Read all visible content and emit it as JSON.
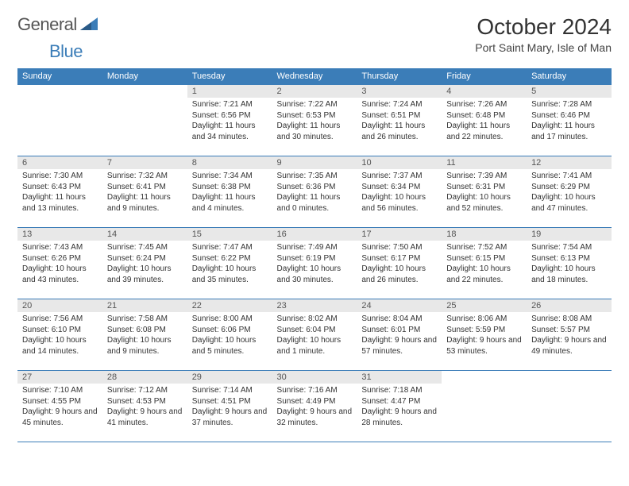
{
  "brand": {
    "part1": "General",
    "part2": "Blue"
  },
  "title": "October 2024",
  "location": "Port Saint Mary, Isle of Man",
  "colors": {
    "header_bg": "#3b7db8",
    "header_text": "#ffffff",
    "daynum_bg": "#e8e8e8",
    "daynum_text": "#555555",
    "body_text": "#333333",
    "rule": "#3b7db8",
    "page_bg": "#ffffff"
  },
  "weekdays": [
    "Sunday",
    "Monday",
    "Tuesday",
    "Wednesday",
    "Thursday",
    "Friday",
    "Saturday"
  ],
  "weeks": [
    [
      {
        "blank": true
      },
      {
        "blank": true
      },
      {
        "day": "1",
        "sunrise": "Sunrise: 7:21 AM",
        "sunset": "Sunset: 6:56 PM",
        "daylight": "Daylight: 11 hours and 34 minutes."
      },
      {
        "day": "2",
        "sunrise": "Sunrise: 7:22 AM",
        "sunset": "Sunset: 6:53 PM",
        "daylight": "Daylight: 11 hours and 30 minutes."
      },
      {
        "day": "3",
        "sunrise": "Sunrise: 7:24 AM",
        "sunset": "Sunset: 6:51 PM",
        "daylight": "Daylight: 11 hours and 26 minutes."
      },
      {
        "day": "4",
        "sunrise": "Sunrise: 7:26 AM",
        "sunset": "Sunset: 6:48 PM",
        "daylight": "Daylight: 11 hours and 22 minutes."
      },
      {
        "day": "5",
        "sunrise": "Sunrise: 7:28 AM",
        "sunset": "Sunset: 6:46 PM",
        "daylight": "Daylight: 11 hours and 17 minutes."
      }
    ],
    [
      {
        "day": "6",
        "sunrise": "Sunrise: 7:30 AM",
        "sunset": "Sunset: 6:43 PM",
        "daylight": "Daylight: 11 hours and 13 minutes."
      },
      {
        "day": "7",
        "sunrise": "Sunrise: 7:32 AM",
        "sunset": "Sunset: 6:41 PM",
        "daylight": "Daylight: 11 hours and 9 minutes."
      },
      {
        "day": "8",
        "sunrise": "Sunrise: 7:34 AM",
        "sunset": "Sunset: 6:38 PM",
        "daylight": "Daylight: 11 hours and 4 minutes."
      },
      {
        "day": "9",
        "sunrise": "Sunrise: 7:35 AM",
        "sunset": "Sunset: 6:36 PM",
        "daylight": "Daylight: 11 hours and 0 minutes."
      },
      {
        "day": "10",
        "sunrise": "Sunrise: 7:37 AM",
        "sunset": "Sunset: 6:34 PM",
        "daylight": "Daylight: 10 hours and 56 minutes."
      },
      {
        "day": "11",
        "sunrise": "Sunrise: 7:39 AM",
        "sunset": "Sunset: 6:31 PM",
        "daylight": "Daylight: 10 hours and 52 minutes."
      },
      {
        "day": "12",
        "sunrise": "Sunrise: 7:41 AM",
        "sunset": "Sunset: 6:29 PM",
        "daylight": "Daylight: 10 hours and 47 minutes."
      }
    ],
    [
      {
        "day": "13",
        "sunrise": "Sunrise: 7:43 AM",
        "sunset": "Sunset: 6:26 PM",
        "daylight": "Daylight: 10 hours and 43 minutes."
      },
      {
        "day": "14",
        "sunrise": "Sunrise: 7:45 AM",
        "sunset": "Sunset: 6:24 PM",
        "daylight": "Daylight: 10 hours and 39 minutes."
      },
      {
        "day": "15",
        "sunrise": "Sunrise: 7:47 AM",
        "sunset": "Sunset: 6:22 PM",
        "daylight": "Daylight: 10 hours and 35 minutes."
      },
      {
        "day": "16",
        "sunrise": "Sunrise: 7:49 AM",
        "sunset": "Sunset: 6:19 PM",
        "daylight": "Daylight: 10 hours and 30 minutes."
      },
      {
        "day": "17",
        "sunrise": "Sunrise: 7:50 AM",
        "sunset": "Sunset: 6:17 PM",
        "daylight": "Daylight: 10 hours and 26 minutes."
      },
      {
        "day": "18",
        "sunrise": "Sunrise: 7:52 AM",
        "sunset": "Sunset: 6:15 PM",
        "daylight": "Daylight: 10 hours and 22 minutes."
      },
      {
        "day": "19",
        "sunrise": "Sunrise: 7:54 AM",
        "sunset": "Sunset: 6:13 PM",
        "daylight": "Daylight: 10 hours and 18 minutes."
      }
    ],
    [
      {
        "day": "20",
        "sunrise": "Sunrise: 7:56 AM",
        "sunset": "Sunset: 6:10 PM",
        "daylight": "Daylight: 10 hours and 14 minutes."
      },
      {
        "day": "21",
        "sunrise": "Sunrise: 7:58 AM",
        "sunset": "Sunset: 6:08 PM",
        "daylight": "Daylight: 10 hours and 9 minutes."
      },
      {
        "day": "22",
        "sunrise": "Sunrise: 8:00 AM",
        "sunset": "Sunset: 6:06 PM",
        "daylight": "Daylight: 10 hours and 5 minutes."
      },
      {
        "day": "23",
        "sunrise": "Sunrise: 8:02 AM",
        "sunset": "Sunset: 6:04 PM",
        "daylight": "Daylight: 10 hours and 1 minute."
      },
      {
        "day": "24",
        "sunrise": "Sunrise: 8:04 AM",
        "sunset": "Sunset: 6:01 PM",
        "daylight": "Daylight: 9 hours and 57 minutes."
      },
      {
        "day": "25",
        "sunrise": "Sunrise: 8:06 AM",
        "sunset": "Sunset: 5:59 PM",
        "daylight": "Daylight: 9 hours and 53 minutes."
      },
      {
        "day": "26",
        "sunrise": "Sunrise: 8:08 AM",
        "sunset": "Sunset: 5:57 PM",
        "daylight": "Daylight: 9 hours and 49 minutes."
      }
    ],
    [
      {
        "day": "27",
        "sunrise": "Sunrise: 7:10 AM",
        "sunset": "Sunset: 4:55 PM",
        "daylight": "Daylight: 9 hours and 45 minutes."
      },
      {
        "day": "28",
        "sunrise": "Sunrise: 7:12 AM",
        "sunset": "Sunset: 4:53 PM",
        "daylight": "Daylight: 9 hours and 41 minutes."
      },
      {
        "day": "29",
        "sunrise": "Sunrise: 7:14 AM",
        "sunset": "Sunset: 4:51 PM",
        "daylight": "Daylight: 9 hours and 37 minutes."
      },
      {
        "day": "30",
        "sunrise": "Sunrise: 7:16 AM",
        "sunset": "Sunset: 4:49 PM",
        "daylight": "Daylight: 9 hours and 32 minutes."
      },
      {
        "day": "31",
        "sunrise": "Sunrise: 7:18 AM",
        "sunset": "Sunset: 4:47 PM",
        "daylight": "Daylight: 9 hours and 28 minutes."
      },
      {
        "blank": true
      },
      {
        "blank": true
      }
    ]
  ]
}
